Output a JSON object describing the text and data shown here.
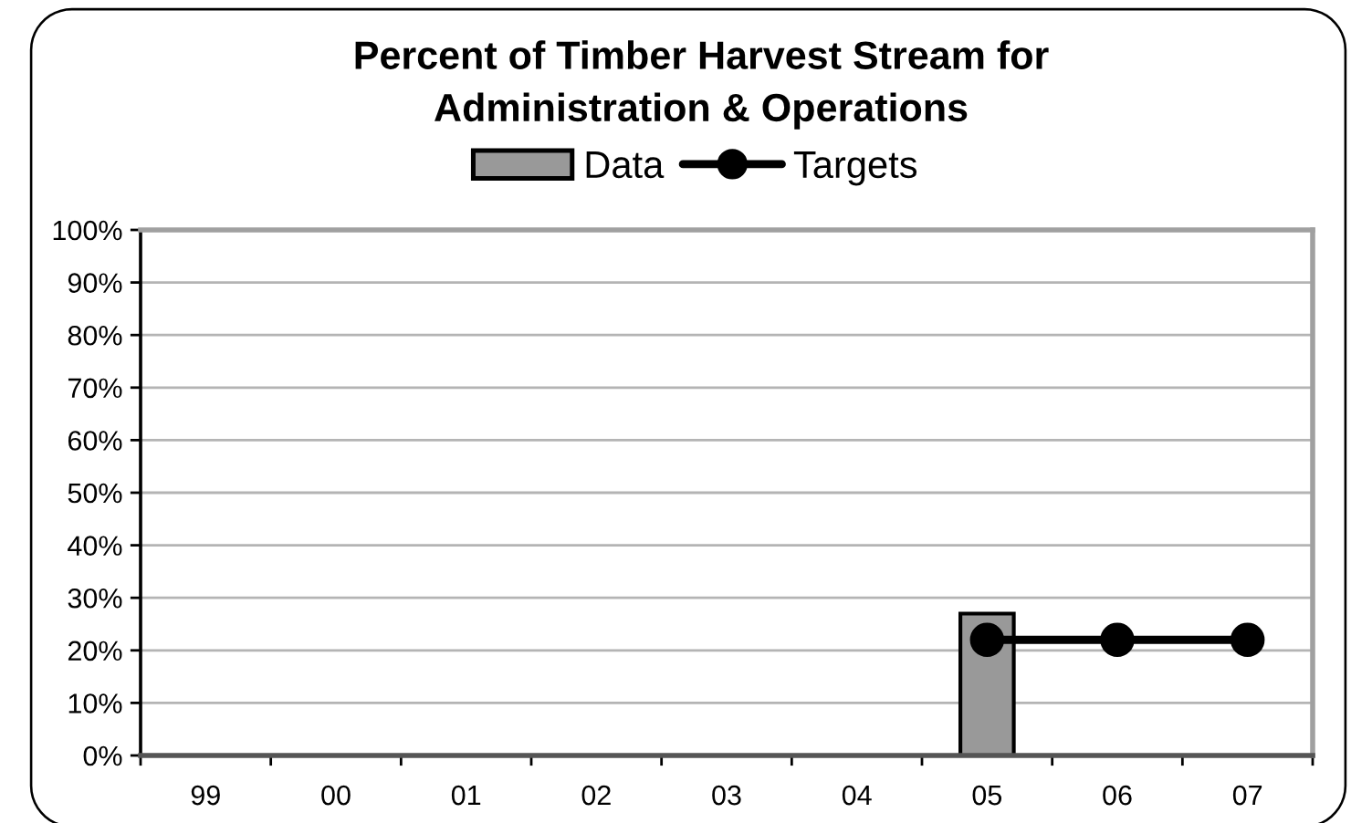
{
  "chart_data": {
    "type": "bar",
    "title": "Percent of Timber Harvest Stream for\nAdministration & Operations",
    "categories": [
      "99",
      "00",
      "01",
      "02",
      "03",
      "04",
      "05",
      "06",
      "07"
    ],
    "series": [
      {
        "name": "Data",
        "color": "#999999",
        "values": [
          null,
          null,
          null,
          null,
          null,
          null,
          27,
          null,
          null
        ]
      },
      {
        "name": "Targets",
        "type": "line",
        "color": "#000000",
        "values": [
          null,
          null,
          null,
          null,
          null,
          null,
          22,
          22,
          22
        ]
      }
    ],
    "ylim": [
      0,
      100
    ],
    "yticks": [
      {
        "value": 0,
        "label": "0%"
      },
      {
        "value": 10,
        "label": "10%"
      },
      {
        "value": 20,
        "label": "20%"
      },
      {
        "value": 30,
        "label": "30%"
      },
      {
        "value": 40,
        "label": "40%"
      },
      {
        "value": 50,
        "label": "50%"
      },
      {
        "value": 60,
        "label": "60%"
      },
      {
        "value": 70,
        "label": "70%"
      },
      {
        "value": 80,
        "label": "80%"
      },
      {
        "value": 90,
        "label": "90%"
      },
      {
        "value": 100,
        "label": "100%"
      }
    ],
    "grid": "y",
    "legend": "top",
    "marker": "circle",
    "line_style": "solid"
  }
}
